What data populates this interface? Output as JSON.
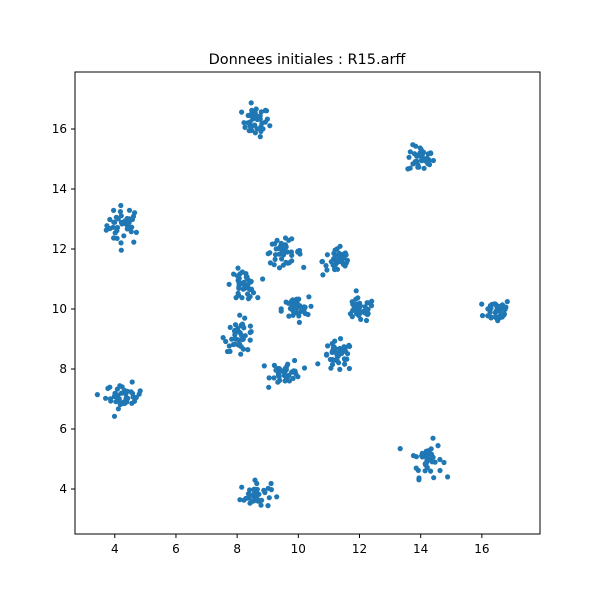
{
  "chart_data": {
    "type": "scatter",
    "title": "Donnees initiales : R15.arff",
    "xlabel": "",
    "ylabel": "",
    "xlim": [
      2.7,
      17.9
    ],
    "ylim": [
      2.5,
      17.9
    ],
    "xticks": [
      4,
      6,
      8,
      10,
      12,
      14,
      16
    ],
    "yticks": [
      4,
      6,
      8,
      10,
      12,
      14,
      16
    ],
    "grid": false,
    "color": "#1f77b4",
    "clusters": [
      {
        "center": [
          4.3,
          12.8
        ],
        "spread": [
          0.28,
          0.32
        ]
      },
      {
        "center": [
          8.6,
          16.25
        ],
        "spread": [
          0.22,
          0.25
        ]
      },
      {
        "center": [
          14.0,
          15.0
        ],
        "spread": [
          0.22,
          0.22
        ]
      },
      {
        "center": [
          16.5,
          9.95
        ],
        "spread": [
          0.22,
          0.2
        ]
      },
      {
        "center": [
          14.2,
          5.0
        ],
        "spread": [
          0.25,
          0.3
        ]
      },
      {
        "center": [
          8.6,
          3.8
        ],
        "spread": [
          0.25,
          0.22
        ]
      },
      {
        "center": [
          4.3,
          7.1
        ],
        "spread": [
          0.3,
          0.2
        ]
      },
      {
        "center": [
          9.5,
          11.9
        ],
        "spread": [
          0.3,
          0.2
        ]
      },
      {
        "center": [
          11.3,
          11.6
        ],
        "spread": [
          0.25,
          0.25
        ]
      },
      {
        "center": [
          12.0,
          9.95
        ],
        "spread": [
          0.25,
          0.2
        ]
      },
      {
        "center": [
          11.3,
          8.4
        ],
        "spread": [
          0.25,
          0.25
        ]
      },
      {
        "center": [
          9.6,
          7.9
        ],
        "spread": [
          0.25,
          0.2
        ]
      },
      {
        "center": [
          8.1,
          9.1
        ],
        "spread": [
          0.25,
          0.25
        ]
      },
      {
        "center": [
          8.2,
          10.8
        ],
        "spread": [
          0.2,
          0.25
        ]
      },
      {
        "center": [
          9.9,
          10.0
        ],
        "spread": [
          0.22,
          0.2
        ]
      }
    ],
    "points_per_cluster": 40
  }
}
